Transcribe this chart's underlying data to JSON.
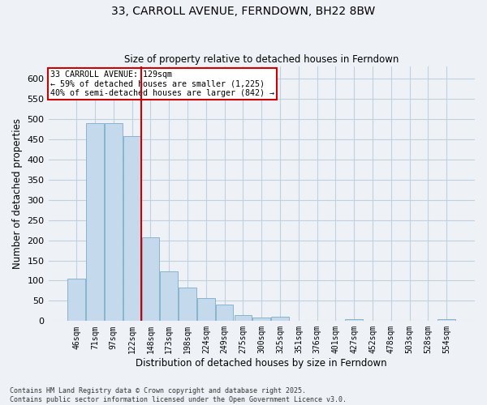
{
  "title": "33, CARROLL AVENUE, FERNDOWN, BH22 8BW",
  "subtitle": "Size of property relative to detached houses in Ferndown",
  "xlabel": "Distribution of detached houses by size in Ferndown",
  "ylabel": "Number of detached properties",
  "categories": [
    "46sqm",
    "71sqm",
    "97sqm",
    "122sqm",
    "148sqm",
    "173sqm",
    "198sqm",
    "224sqm",
    "249sqm",
    "275sqm",
    "300sqm",
    "325sqm",
    "351sqm",
    "376sqm",
    "401sqm",
    "427sqm",
    "452sqm",
    "478sqm",
    "503sqm",
    "528sqm",
    "554sqm"
  ],
  "values": [
    105,
    490,
    490,
    458,
    208,
    123,
    83,
    57,
    40,
    14,
    9,
    11,
    0,
    0,
    0,
    5,
    0,
    0,
    0,
    0,
    5
  ],
  "bar_color": "#c5d9ec",
  "bar_edge_color": "#7aaec8",
  "ylim": [
    0,
    630
  ],
  "yticks": [
    0,
    50,
    100,
    150,
    200,
    250,
    300,
    350,
    400,
    450,
    500,
    550,
    600
  ],
  "vline_x_index": 3,
  "vline_color": "#cc0000",
  "annotation_text": "33 CARROLL AVENUE: 129sqm\n← 59% of detached houses are smaller (1,225)\n40% of semi-detached houses are larger (842) →",
  "annotation_box_color": "#cc0000",
  "footer_line1": "Contains HM Land Registry data © Crown copyright and database right 2025.",
  "footer_line2": "Contains public sector information licensed under the Open Government Licence v3.0.",
  "bg_color": "#eef2f7",
  "plot_bg_color": "#eef2f7",
  "grid_color": "#c0d0e0"
}
